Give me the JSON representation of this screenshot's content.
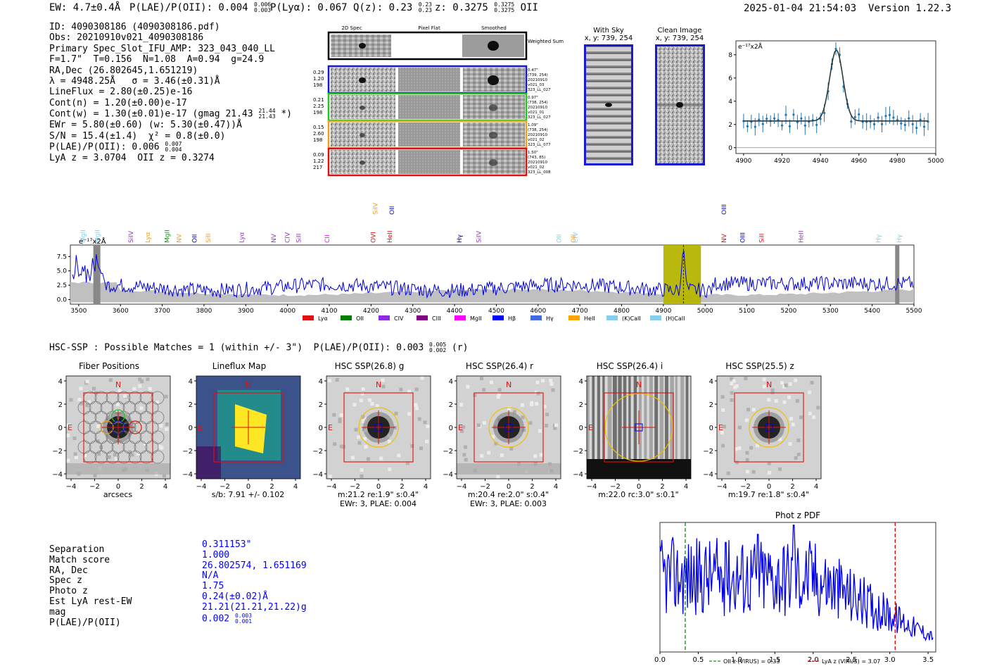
{
  "header": {
    "ew": "EW: 4.7±0.4Å",
    "plae_label": "P(LAE)/P(OII): 0.004",
    "plae_hi": "0.006",
    "plae_lo": "0.003",
    "plya": "P(Lyα): 0.067",
    "qz_label": "Q(z): 0.23",
    "qz_hi": "0.23",
    "qz_lo": "0.23",
    "z_label": "z: 0.3275",
    "z_hi": "0.3275",
    "z_lo": "0.3275",
    "z_line": "OII",
    "datetime": "2025-01-04 21:54:03",
    "version": "Version 1.22.3"
  },
  "info": {
    "id": "ID: 4090308186 (4090308186.pdf)",
    "obs": "Obs: 20210910v021_4090308186",
    "primary": "Primary Spec_Slot_IFU_AMP: 323_043_040_LL",
    "fit": "F=1.7\"  T=0.156  N=1.08  A=0.94  g=24.9",
    "radec": "RA,Dec (26.802645,1.651219)",
    "lambda": "λ = 4948.25Å   σ = 3.46(±0.31)Å",
    "lineflux": "LineFlux = 2.80(±0.25)e-16",
    "contn": "Cont(n) = 1.20(±0.00)e-17",
    "contw_a": "Cont(w) = 1.30(±0.01)e-17 (gmag 21.43",
    "contw_hi": "21.44",
    "contw_lo": "21.43",
    "contw_b": " *)",
    "ewr": "EWr = 5.80(±0.60) (w: 5.30(±0.47))Å",
    "sn": "S/N = 15.4(±1.4)  χ² = 0.8(±0.0)",
    "plae_a": "P(LAE)/P(OII): 0.006",
    "plae_hi": "0.007",
    "plae_lo": "0.004",
    "lya": "LyA z = 3.0704  OII z = 0.3274"
  },
  "cutouts2d": {
    "col_headers": [
      "2D Spec",
      "Pixel Flat",
      "Smoothed"
    ],
    "weighted_label": "Weighted Sum",
    "rows": [
      {
        "left": [
          "0.29",
          "1.20",
          "198"
        ],
        "right": [
          "0.47\"",
          "(739, 254)",
          "20210910",
          "v021_03",
          "323_LL_027"
        ],
        "color": "#1515d6"
      },
      {
        "left": [
          "0.21",
          "2.25",
          "198"
        ],
        "right": [
          "0.97\"",
          "(738, 254)",
          "20210910",
          "v021_01",
          "323_LL_027"
        ],
        "color": "#22c422"
      },
      {
        "left": [
          "0.15",
          "2.60",
          "198"
        ],
        "right": [
          "1.09\"",
          "(738, 254)",
          "20210910",
          "v021_02",
          "323_LL_077"
        ],
        "color": "#f0a020"
      },
      {
        "left": [
          "0.09",
          "1.22",
          "217"
        ],
        "right": [
          "1.50\"",
          "(743, 85)",
          "20210910",
          "v021_02",
          "323_LL_008"
        ],
        "color": "#e01010"
      }
    ]
  },
  "sky": {
    "title": "With Sky",
    "coord": "x, y: 739, 254"
  },
  "clean": {
    "title": "Clean Image",
    "coord": "x, y: 739, 254"
  },
  "fit_plot": {
    "ylabel": "e⁻¹⁷x2Å",
    "xticks": [
      "4900",
      "4920",
      "4940",
      "4960",
      "4980",
      "5000"
    ],
    "yticks": [
      "0",
      "2",
      "4",
      "6",
      "8"
    ],
    "xlim": [
      4896,
      5000
    ],
    "ylim": [
      -0.5,
      9.2
    ]
  },
  "spectrum": {
    "ylabel": "e⁻¹⁷x2Å",
    "yticks": [
      "0.0",
      "2.5",
      "5.0",
      "7.5"
    ],
    "xticks": [
      "3500",
      "3600",
      "3700",
      "3800",
      "3900",
      "4000",
      "4100",
      "4200",
      "4300",
      "4400",
      "4500",
      "4600",
      "4700",
      "4800",
      "4900",
      "5000",
      "5100",
      "5200",
      "5300",
      "5400",
      "5500"
    ],
    "xlim": [
      3480,
      5500
    ],
    "line_labels": [
      {
        "t": "MgII",
        "w": 3510,
        "c": "#87ceeb"
      },
      {
        "t": "MgII",
        "w": 3545,
        "c": "#87ceeb"
      },
      {
        "t": "SiIV",
        "w": 3625,
        "c": "#9932cc"
      },
      {
        "t": "Lyα",
        "w": 3665,
        "c": "#f0a020"
      },
      {
        "t": "MgII",
        "w": 3712,
        "c": "#228b22"
      },
      {
        "t": "NV",
        "w": 3740,
        "c": "#f0a020"
      },
      {
        "t": "OII",
        "w": 3777,
        "c": "#0000cd"
      },
      {
        "t": "SiII",
        "w": 3810,
        "c": "#f0a020"
      },
      {
        "t": "Lyα",
        "w": 3890,
        "c": "#9932cc"
      },
      {
        "t": "NV",
        "w": 3967,
        "c": "#9932cc"
      },
      {
        "t": "CIV",
        "w": 4000,
        "c": "#9932cc"
      },
      {
        "t": "SiII",
        "w": 4027,
        "c": "#9932cc"
      },
      {
        "t": "CII",
        "w": 4095,
        "c": "#ff00ff"
      },
      {
        "t": "OVI",
        "w": 4205,
        "c": "#e01010"
      },
      {
        "t": "SiIV",
        "w": 4210,
        "c": "#f0a020",
        "high": true
      },
      {
        "t": "OII",
        "w": 4250,
        "c": "#0000cd",
        "high": true
      },
      {
        "t": "HeII",
        "w": 4245,
        "c": "#e01010"
      },
      {
        "t": "Hγ",
        "w": 4412,
        "c": "#0000cd"
      },
      {
        "t": "SiIV",
        "w": 4458,
        "c": "#9932cc"
      },
      {
        "t": "OII",
        "w": 4650,
        "c": "#87ceeb"
      },
      {
        "t": "OII",
        "w": 4685,
        "c": "#f0a020"
      },
      {
        "t": "CIV",
        "w": 4690,
        "c": "#87ceeb"
      },
      {
        "t": "OIII",
        "w": 5045,
        "c": "#0000cd",
        "high": true
      },
      {
        "t": "NV",
        "w": 5045,
        "c": "#e01010"
      },
      {
        "t": "OIII",
        "w": 5090,
        "c": "#0000cd"
      },
      {
        "t": "SiII",
        "w": 5135,
        "c": "#e01010"
      },
      {
        "t": "HeII",
        "w": 5230,
        "c": "#9932cc"
      },
      {
        "t": "Hγ",
        "w": 5415,
        "c": "#87ceeb"
      },
      {
        "t": "Hγ",
        "w": 5465,
        "c": "#87ceeb"
      }
    ],
    "legend": [
      {
        "t": "Lyα",
        "c": "#e01010"
      },
      {
        "t": "OII",
        "c": "#008000"
      },
      {
        "t": "CIV",
        "c": "#8a2be2"
      },
      {
        "t": "CIII",
        "c": "#800080"
      },
      {
        "t": "MgII",
        "c": "#ff00ff"
      },
      {
        "t": "Hβ",
        "c": "#0000ff"
      },
      {
        "t": "Hγ",
        "c": "#4169e1"
      },
      {
        "t": "HeII",
        "c": "#ffa500"
      },
      {
        "t": "(K)CaII",
        "c": "#87ceeb"
      },
      {
        "t": "(H)CaII",
        "c": "#87ceeb"
      }
    ]
  },
  "hsc": {
    "title_a": "HSC-SSP : Possible Matches = 1 (within +/- 3\")  P(LAE)/P(OII): 0.003",
    "title_hi": "0.005",
    "title_lo": "0.002",
    "title_b": " (r)"
  },
  "cutouts": [
    {
      "title": "Fiber Positions",
      "cap1": "arcsecs",
      "cap2": ""
    },
    {
      "title": "Lineflux Map",
      "cap1": "s/b: 7.91 +/- 0.102",
      "cap2": ""
    },
    {
      "title": "HSC SSP(26.8) g",
      "cap1": "m:21.2  re:1.9\"  s:0.4\"",
      "cap2": "EWr: 3, PLAE: 0.004"
    },
    {
      "title": "HSC SSP(26.4) r",
      "cap1": "m:20.4  re:2.0\"  s:0.4\"",
      "cap2": "EWr: 3, PLAE: 0.003"
    },
    {
      "title": "HSC SSP(26.4) i",
      "cap1": "m:22.0 rc:3.0\"  s:0.1\"",
      "cap2": ""
    },
    {
      "title": "HSC SSP(25.5) z",
      "cap1": "m:19.7  re:1.8\"  s:0.4\"",
      "cap2": ""
    }
  ],
  "cutout_ticks": {
    "x": [
      "−4",
      "−2",
      "0",
      "2",
      "4"
    ],
    "y": [
      "4",
      "2",
      "0",
      "−2",
      "−4"
    ],
    "north": "N",
    "east": "E"
  },
  "match": {
    "labels": [
      "Separation",
      "Match score",
      "RA, Dec",
      "Spec z",
      "Photo z",
      "Est LyA rest-EW",
      "mag",
      "P(LAE)/P(OII)"
    ],
    "values": [
      "0.311153\"",
      "1.000",
      "26.802574, 1.651169",
      "N/A",
      "1.75",
      "0.24(±0.02)Å",
      "21.21(21.21,21.22)g",
      "0.002"
    ],
    "plae_hi": "0.003",
    "plae_lo": "0.001"
  },
  "photz": {
    "title": "Phot z PDF",
    "xticks": [
      "0.0",
      "0.5",
      "1.0",
      "1.5",
      "2.0",
      "2.5",
      "3.0",
      "3.5"
    ],
    "xlim": [
      0,
      3.6
    ],
    "oii_z": 0.33,
    "lya_z": 3.07,
    "legend_oii": "OII z (VIRUS) = 0.33",
    "legend_lya": "LyA z (VIRUS) = 3.07"
  }
}
